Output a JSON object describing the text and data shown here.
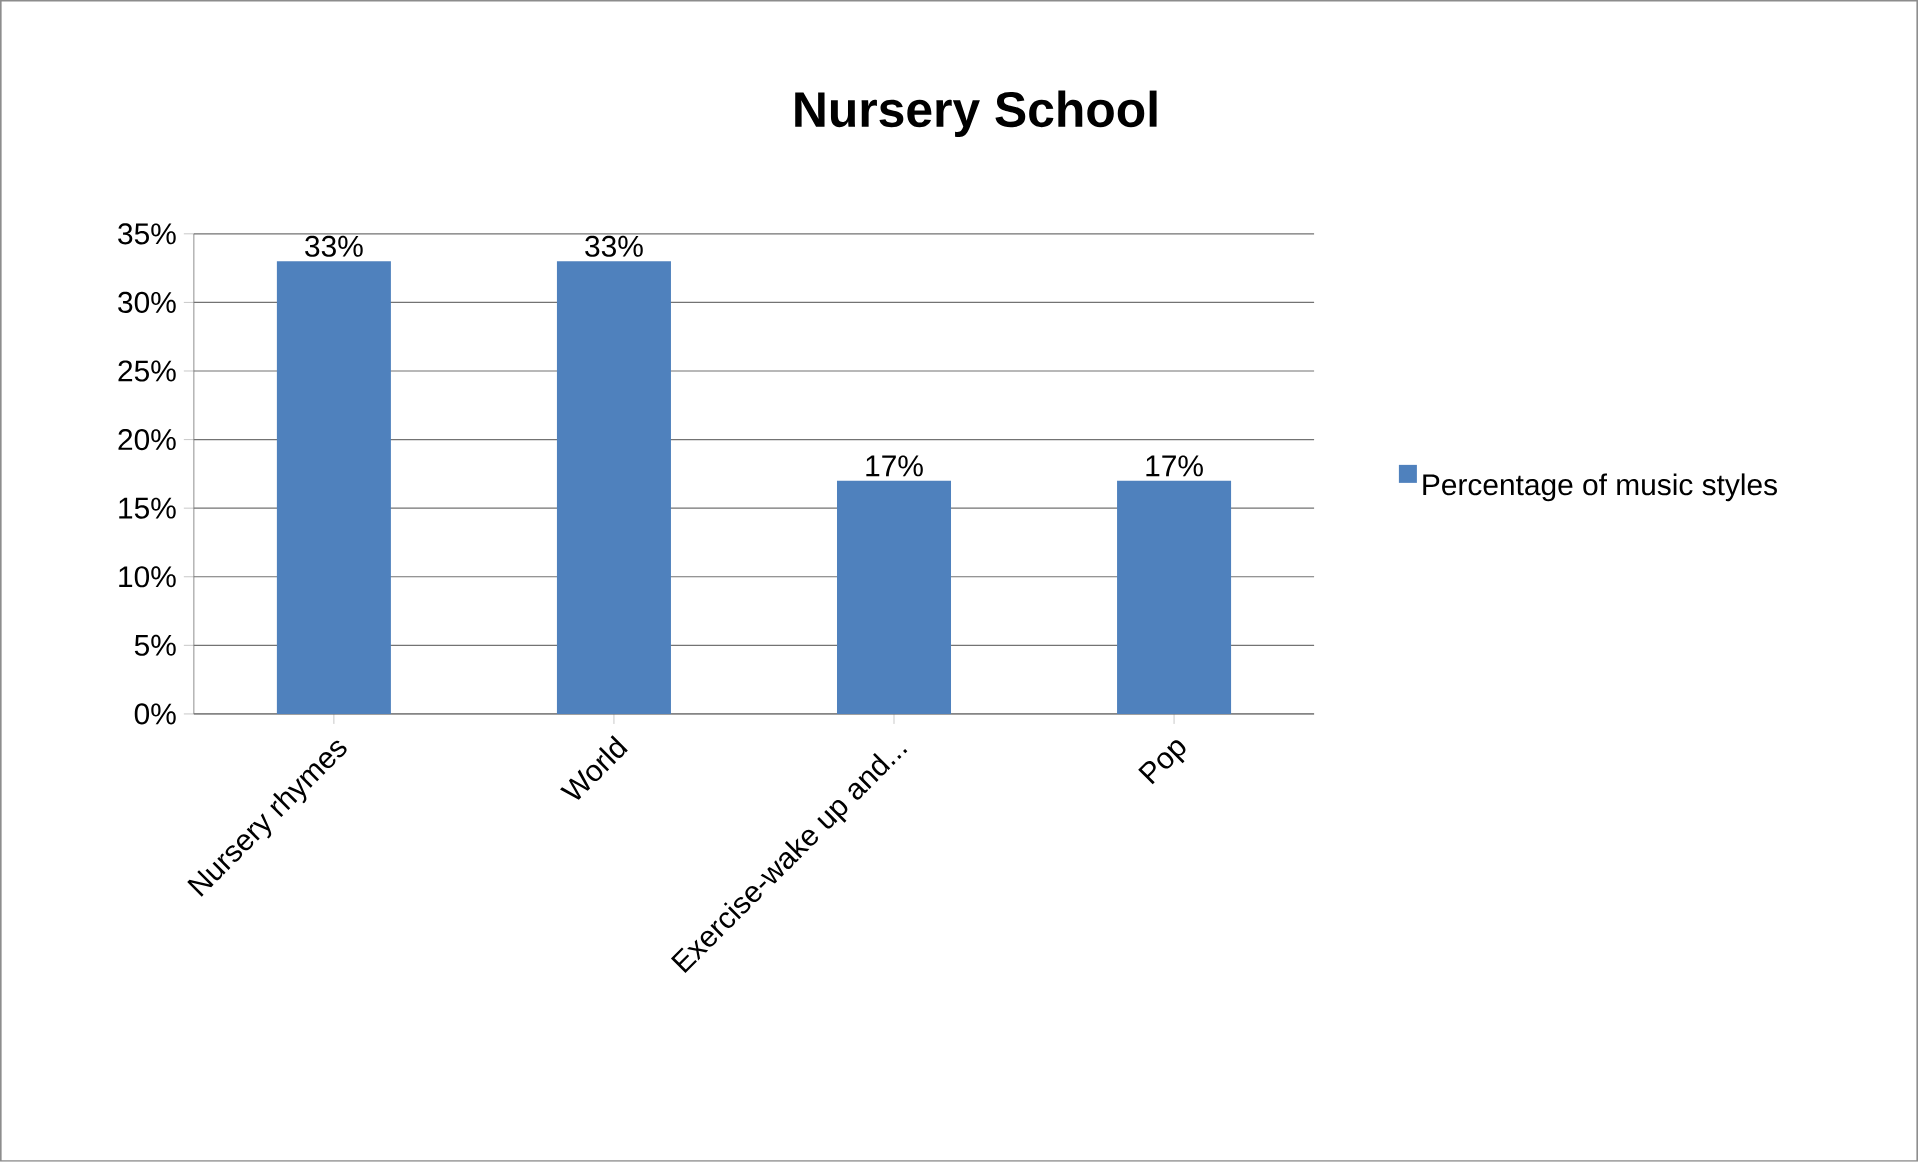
{
  "chart_data": {
    "type": "bar",
    "title": "Nursery School",
    "categories": [
      "Nursery rhymes",
      "World",
      "Exercise-wake up and...",
      "Pop"
    ],
    "series": [
      {
        "name": "Percentage of music styles",
        "color": "#4f81bd",
        "values": [
          33,
          33,
          17,
          17
        ],
        "value_labels": [
          "33%",
          "33%",
          "17%",
          "17%"
        ]
      }
    ],
    "ylim": [
      0,
      35
    ],
    "yticks": [
      {
        "value": 0,
        "label": "0%"
      },
      {
        "value": 5,
        "label": "5%"
      },
      {
        "value": 10,
        "label": "10%"
      },
      {
        "value": 15,
        "label": "15%"
      },
      {
        "value": 20,
        "label": "20%"
      },
      {
        "value": 25,
        "label": "25%"
      },
      {
        "value": 30,
        "label": "30%"
      },
      {
        "value": 35,
        "label": "35%"
      }
    ],
    "grid": "y",
    "legend": "right"
  }
}
